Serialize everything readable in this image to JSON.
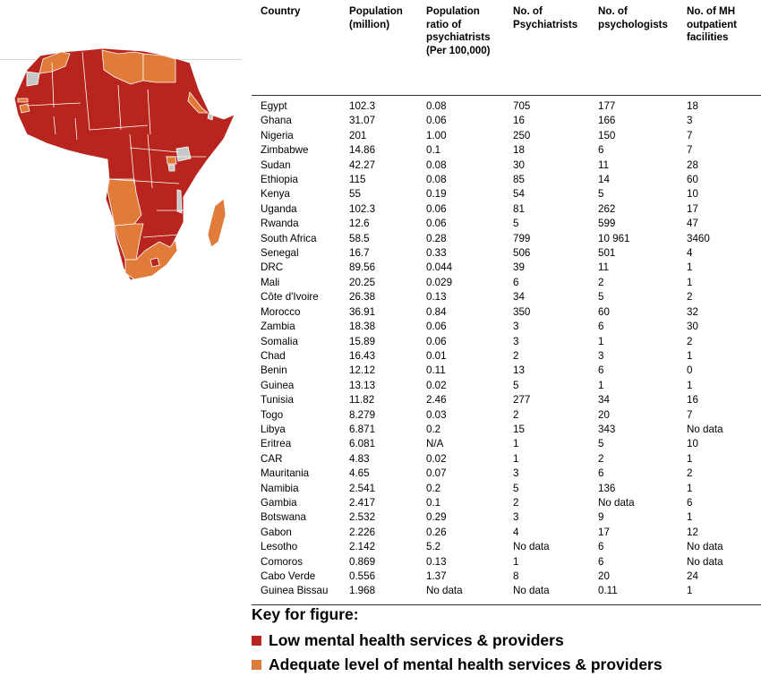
{
  "colors": {
    "low": "#b8251f",
    "adequate": "#e07b39",
    "other": "#c7c7c7",
    "border": "#ffffff"
  },
  "table": {
    "headers": [
      "Country",
      "Population (million)",
      "Population ratio of psychiatrists (Per 100,000)",
      "No. of Psychiatrists",
      "No. of psychologists",
      "No. of MH outpatient facilities"
    ],
    "rows": [
      [
        "Egypt",
        "102.3",
        "0.08",
        "705",
        "177",
        "18"
      ],
      [
        "Ghana",
        "31.07",
        "0.06",
        "16",
        "166",
        "3"
      ],
      [
        "Nigeria",
        "201",
        "1.00",
        "250",
        "150",
        "7"
      ],
      [
        "Zimbabwe",
        "14.86",
        "0.1",
        "18",
        "6",
        "7"
      ],
      [
        "Sudan",
        "42.27",
        "0.08",
        "30",
        "11",
        "28"
      ],
      [
        "Ethiopia",
        "115",
        "0.08",
        "85",
        "14",
        "60"
      ],
      [
        "Kenya",
        "55",
        "0.19",
        "54",
        "5",
        "10"
      ],
      [
        "Uganda",
        "102.3",
        "0.06",
        "81",
        "262",
        "17"
      ],
      [
        "Rwanda",
        "12.6",
        "0.06",
        "5",
        "599",
        "47"
      ],
      [
        "South Africa",
        "58.5",
        "0.28",
        "799",
        "10 961",
        "3460"
      ],
      [
        "Senegal",
        "16.7",
        "0.33",
        "506",
        "501",
        "4"
      ],
      [
        "DRC",
        "89.56",
        "0.044",
        "39",
        "11",
        "1"
      ],
      [
        "Mali",
        "20.25",
        "0.029",
        "6",
        "2",
        "1"
      ],
      [
        "Côte d'Ivoire",
        "26.38",
        "0.13",
        "34",
        "5",
        "2"
      ],
      [
        "Morocco",
        "36.91",
        "0.84",
        "350",
        "60",
        "32"
      ],
      [
        "Zambia",
        "18.38",
        "0.06",
        "3",
        "6",
        "30"
      ],
      [
        "Somalia",
        "15.89",
        "0.06",
        "3",
        "1",
        "2"
      ],
      [
        "Chad",
        "16.43",
        "0.01",
        "2",
        "3",
        "1"
      ],
      [
        "Benin",
        "12.12",
        "0.11",
        "13",
        "6",
        "0"
      ],
      [
        "Guinea",
        "13.13",
        "0.02",
        "5",
        "1",
        "1"
      ],
      [
        "Tunisia",
        "11.82",
        "2.46",
        "277",
        "34",
        "16"
      ],
      [
        "Togo",
        "8.279",
        "0.03",
        "2",
        "20",
        "7"
      ],
      [
        "Libya",
        "6.871",
        "0.2",
        "15",
        "343",
        "No data"
      ],
      [
        "Eritrea",
        "6.081",
        "N/A",
        "1",
        "5",
        "10"
      ],
      [
        "CAR",
        "4.83",
        "0.02",
        "1",
        "2",
        "1"
      ],
      [
        "Mauritania",
        "4.65",
        "0.07",
        "3",
        "6",
        "2"
      ],
      [
        "Namibia",
        "2.541",
        "0.2",
        "5",
        "136",
        "1"
      ],
      [
        "Gambia",
        "2.417",
        "0.1",
        "2",
        "No data",
        "6"
      ],
      [
        "Botswana",
        "2.532",
        "0.29",
        "3",
        "9",
        "1"
      ],
      [
        "Gabon",
        "2.226",
        "0.26",
        "4",
        "17",
        "12"
      ],
      [
        "Lesotho",
        "2.142",
        "5.2",
        "No data",
        "6",
        "No data"
      ],
      [
        "Comoros",
        "0.869",
        "0.13",
        "1",
        "6",
        "No data"
      ],
      [
        "Cabo Verde",
        "0.556",
        "1.37",
        "8",
        "20",
        "24"
      ],
      [
        "Guinea Bissau",
        "1.968",
        "No data",
        "No data",
        "0.11",
        "1"
      ]
    ]
  },
  "key": {
    "title": "Key for figure:",
    "items": [
      {
        "label": "Low mental health services & providers",
        "color": "#b8251f"
      },
      {
        "label": "Adequate level of mental health services & providers",
        "color": "#e07b39"
      }
    ]
  },
  "map": {
    "regions": [
      {
        "name": "continent",
        "category": "low"
      },
      {
        "name": "morocco",
        "category": "adequate"
      },
      {
        "name": "libya",
        "category": "adequate"
      },
      {
        "name": "egypt",
        "category": "adequate"
      },
      {
        "name": "western-sahara",
        "category": "other"
      },
      {
        "name": "gambia",
        "category": "adequate"
      },
      {
        "name": "guinea-bissau",
        "category": "adequate"
      },
      {
        "name": "eritrea",
        "category": "adequate"
      },
      {
        "name": "rwanda",
        "category": "adequate"
      },
      {
        "name": "burundi",
        "category": "other"
      },
      {
        "name": "angola",
        "category": "adequate"
      },
      {
        "name": "namibia",
        "category": "adequate"
      },
      {
        "name": "south-africa",
        "category": "adequate"
      },
      {
        "name": "madagascar",
        "category": "adequate"
      },
      {
        "name": "djibouti",
        "category": "other"
      },
      {
        "name": "malawi",
        "category": "other"
      },
      {
        "name": "lesotho",
        "category": "low"
      },
      {
        "name": "lake-victoria",
        "category": "other"
      }
    ]
  }
}
